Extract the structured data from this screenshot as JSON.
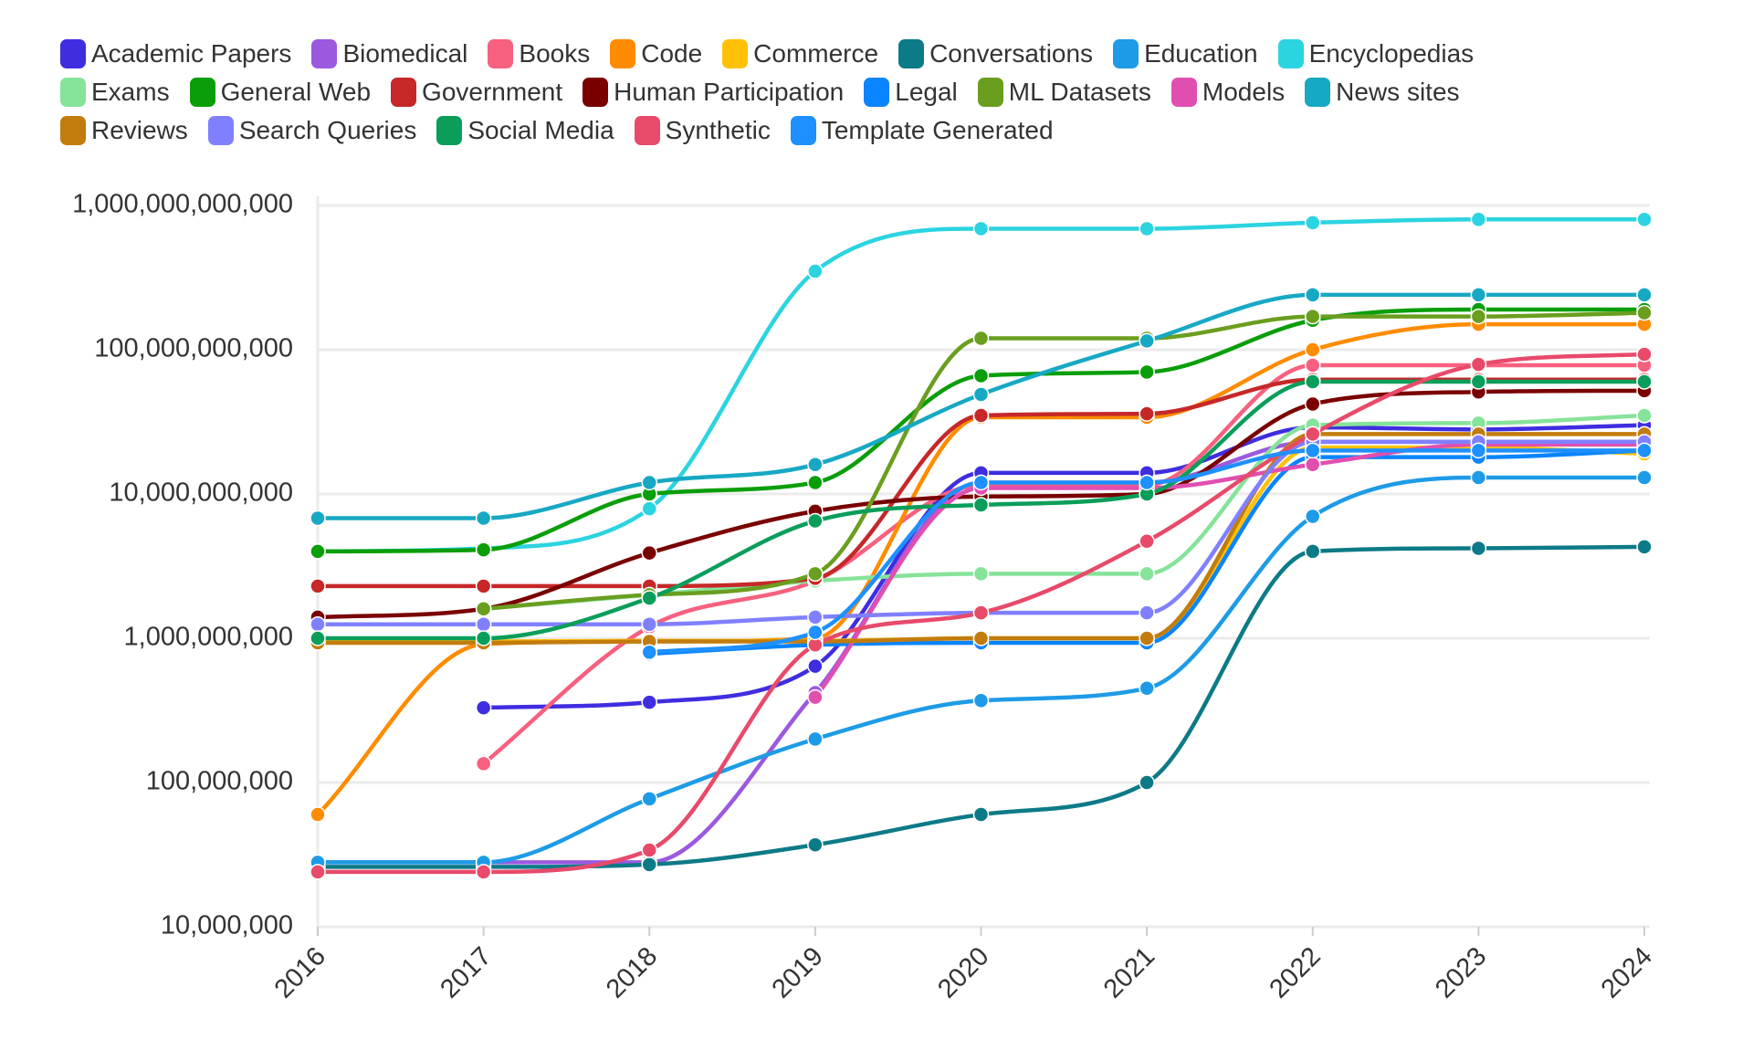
{
  "chart_data": {
    "type": "line",
    "log_scale": true,
    "grid": true,
    "x": [
      2016,
      2017,
      2018,
      2019,
      2020,
      2021,
      2022,
      2023,
      2024
    ],
    "xlim": [
      2016,
      2024
    ],
    "ylim": [
      10000000,
      1000000000000
    ],
    "yticks": [
      {
        "value": 10000000,
        "label": "10,000,000"
      },
      {
        "value": 100000000,
        "label": "100,000,000"
      },
      {
        "value": 1000000000,
        "label": "1,000,000,000"
      },
      {
        "value": 10000000000,
        "label": "10,000,000,000"
      },
      {
        "value": 100000000000,
        "label": "100,000,000,000"
      },
      {
        "value": 1000000000000,
        "label": "1,000,000,000,000"
      }
    ],
    "series": [
      {
        "name": "Academic Papers",
        "color": "#3f2de0",
        "values": [
          null,
          330000000,
          360000000,
          640000000,
          14000000000,
          14000000000,
          29000000000,
          28000000000,
          30000000000
        ]
      },
      {
        "name": "Biomedical",
        "color": "#9b59e0",
        "values": [
          28000000,
          28000000,
          28000000,
          420000000,
          12000000000,
          12000000000,
          23000000000,
          23000000000,
          23000000000
        ]
      },
      {
        "name": "Books",
        "color": "#f7607f",
        "values": [
          null,
          135000000,
          1200000000,
          2500000000,
          11500000000,
          11500000000,
          78000000000,
          78000000000,
          78000000000
        ]
      },
      {
        "name": "Code",
        "color": "#ff8c00",
        "values": [
          60000000,
          910000000,
          950000000,
          1000000000,
          34000000000,
          34000000000,
          100000000000,
          150000000000,
          150000000000
        ]
      },
      {
        "name": "Commerce",
        "color": "#ffc107",
        "values": [
          950000000,
          950000000,
          960000000,
          960000000,
          1000000000,
          1000000000,
          21000000000,
          21000000000,
          19000000000
        ]
      },
      {
        "name": "Conversations",
        "color": "#0d7a87",
        "values": [
          26000000,
          26000000,
          27000000,
          37000000,
          60000000,
          100000000,
          4000000000,
          4200000000,
          4300000000
        ]
      },
      {
        "name": "Education",
        "color": "#1e9be6",
        "values": [
          28000000,
          28000000,
          77000000,
          200000000,
          370000000,
          450000000,
          7000000000,
          13000000000,
          13000000000
        ]
      },
      {
        "name": "Encyclopedias",
        "color": "#2bd4e0",
        "values": [
          4000000000,
          4200000000,
          7900000000,
          350000000000,
          690000000000,
          690000000000,
          760000000000,
          800000000000,
          800000000000
        ]
      },
      {
        "name": "Exams",
        "color": "#86e39a",
        "values": [
          null,
          1600000000,
          2000000000,
          2500000000,
          2800000000,
          2800000000,
          30000000000,
          31000000000,
          35000000000
        ]
      },
      {
        "name": "General Web",
        "color": "#0a9e0a",
        "values": [
          4000000000,
          4100000000,
          10000000000,
          12000000000,
          66000000000,
          70000000000,
          160000000000,
          190000000000,
          190000000000
        ]
      },
      {
        "name": "Government",
        "color": "#c62828",
        "values": [
          2300000000,
          2300000000,
          2300000000,
          2600000000,
          35000000000,
          36000000000,
          62000000000,
          62000000000,
          62000000000
        ]
      },
      {
        "name": "Human Participation",
        "color": "#7a0000",
        "values": [
          1400000000,
          1600000000,
          3900000000,
          7600000000,
          9600000000,
          10000000000,
          42000000000,
          51000000000,
          52000000000
        ]
      },
      {
        "name": "Legal",
        "color": "#0a84ff",
        "values": [
          null,
          null,
          780000000,
          900000000,
          930000000,
          930000000,
          18000000000,
          18000000000,
          20000000000
        ]
      },
      {
        "name": "ML Datasets",
        "color": "#6a9e1f",
        "values": [
          null,
          1600000000,
          2000000000,
          2800000000,
          120000000000,
          120000000000,
          170000000000,
          170000000000,
          180000000000
        ]
      },
      {
        "name": "Models",
        "color": "#e04fb0",
        "values": [
          null,
          null,
          null,
          390000000,
          11000000000,
          11000000000,
          16000000000,
          22000000000,
          22000000000
        ]
      },
      {
        "name": "News sites",
        "color": "#17a8c4",
        "values": [
          6800000000,
          6800000000,
          12000000000,
          16000000000,
          49000000000,
          115000000000,
          240000000000,
          240000000000,
          240000000000
        ]
      },
      {
        "name": "Reviews",
        "color": "#c27c0e",
        "values": [
          930000000,
          930000000,
          950000000,
          950000000,
          1000000000,
          1000000000,
          26000000000,
          26000000000,
          26000000000
        ]
      },
      {
        "name": "Search Queries",
        "color": "#8080ff",
        "values": [
          1250000000,
          1250000000,
          1250000000,
          1400000000,
          1500000000,
          1500000000,
          23000000000,
          23000000000,
          23000000000
        ]
      },
      {
        "name": "Social Media",
        "color": "#0a9e5a",
        "values": [
          1000000000,
          1000000000,
          1900000000,
          6500000000,
          8400000000,
          10000000000,
          60000000000,
          60000000000,
          60000000000
        ]
      },
      {
        "name": "Synthetic",
        "color": "#e84a6a",
        "values": [
          24000000,
          24000000,
          34000000,
          900000000,
          1500000000,
          4700000000,
          26000000000,
          79000000000,
          93000000000
        ]
      },
      {
        "name": "Template Generated",
        "color": "#1e90ff",
        "values": [
          null,
          null,
          800000000,
          1100000000,
          12000000000,
          12000000000,
          20000000000,
          20000000000,
          20000000000
        ]
      }
    ]
  }
}
